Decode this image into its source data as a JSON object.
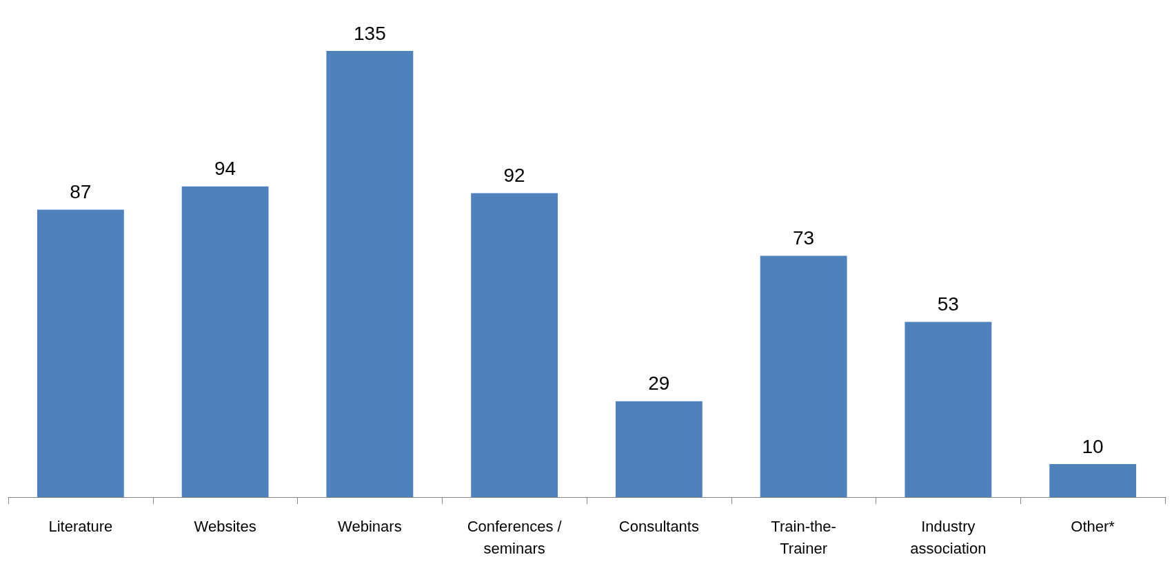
{
  "chart_data": {
    "type": "bar",
    "categories": [
      "Literature",
      "Websites",
      "Webinars",
      "Conferences / seminars",
      "Consultants",
      "Train-the-Trainer",
      "Industry association",
      "Other*"
    ],
    "values": [
      87,
      94,
      135,
      92,
      29,
      73,
      53,
      10
    ],
    "color": "#4f81bd",
    "data_labels": true
  }
}
